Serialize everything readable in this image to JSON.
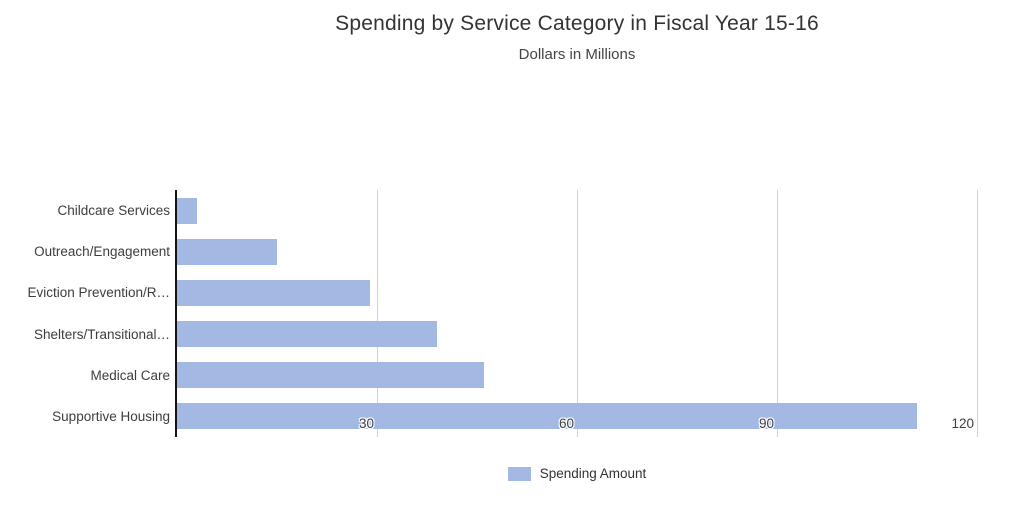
{
  "chart_data": {
    "type": "bar",
    "orientation": "horizontal",
    "title": "Spending by Service Category in Fiscal Year 15-16",
    "subtitle": "Dollars in Millions",
    "categories": [
      "Childcare Services",
      "Outreach/Engagement",
      "Eviction Prevention/R…",
      "Shelters/Transitional…",
      "Medical Care",
      "Supportive Housing"
    ],
    "series": [
      {
        "name": "Spending Amount",
        "values": [
          3,
          15,
          29,
          39,
          46,
          111
        ]
      }
    ],
    "xlim": [
      0,
      120
    ],
    "x_ticks": [
      30,
      60,
      90,
      120
    ],
    "grid": true,
    "legend_position": "bottom",
    "colors": {
      "bar": "#a3b8e3",
      "gridline": "#d2d2d2",
      "axis_line": "#141414",
      "title_text": "#333333",
      "subtitle_text": "#444444",
      "tick_text": "#3f3f3f",
      "category_text": "#3d3d3d",
      "background": "#ffffff"
    }
  },
  "legend": {
    "label": "Spending Amount"
  }
}
